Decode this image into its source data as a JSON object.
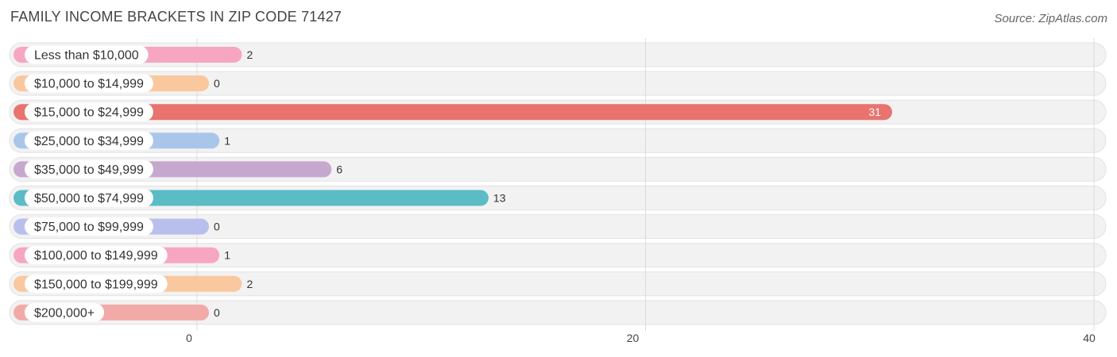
{
  "header": {
    "title": "FAMILY INCOME BRACKETS IN ZIP CODE 71427",
    "source": "Source: ZipAtlas.com"
  },
  "chart_data": {
    "type": "bar",
    "orientation": "horizontal",
    "title": "FAMILY INCOME BRACKETS IN ZIP CODE 71427",
    "categories": [
      "Less than $10,000",
      "$10,000 to $14,999",
      "$15,000 to $24,999",
      "$25,000 to $34,999",
      "$35,000 to $49,999",
      "$50,000 to $74,999",
      "$75,000 to $99,999",
      "$100,000 to $149,999",
      "$150,000 to $199,999",
      "$200,000+"
    ],
    "values": [
      2,
      0,
      31,
      1,
      6,
      13,
      0,
      1,
      2,
      0
    ],
    "colors": [
      "#f7a6c2",
      "#f9c89e",
      "#e8736f",
      "#a9c6ea",
      "#c6a8cf",
      "#5bbcc6",
      "#b9bfec",
      "#f7a6c2",
      "#f9c89e",
      "#f2aaa9"
    ],
    "xlim": [
      0,
      40
    ],
    "xticks": [
      0,
      20,
      40
    ],
    "grid": true,
    "xlabel": "",
    "ylabel": ""
  }
}
